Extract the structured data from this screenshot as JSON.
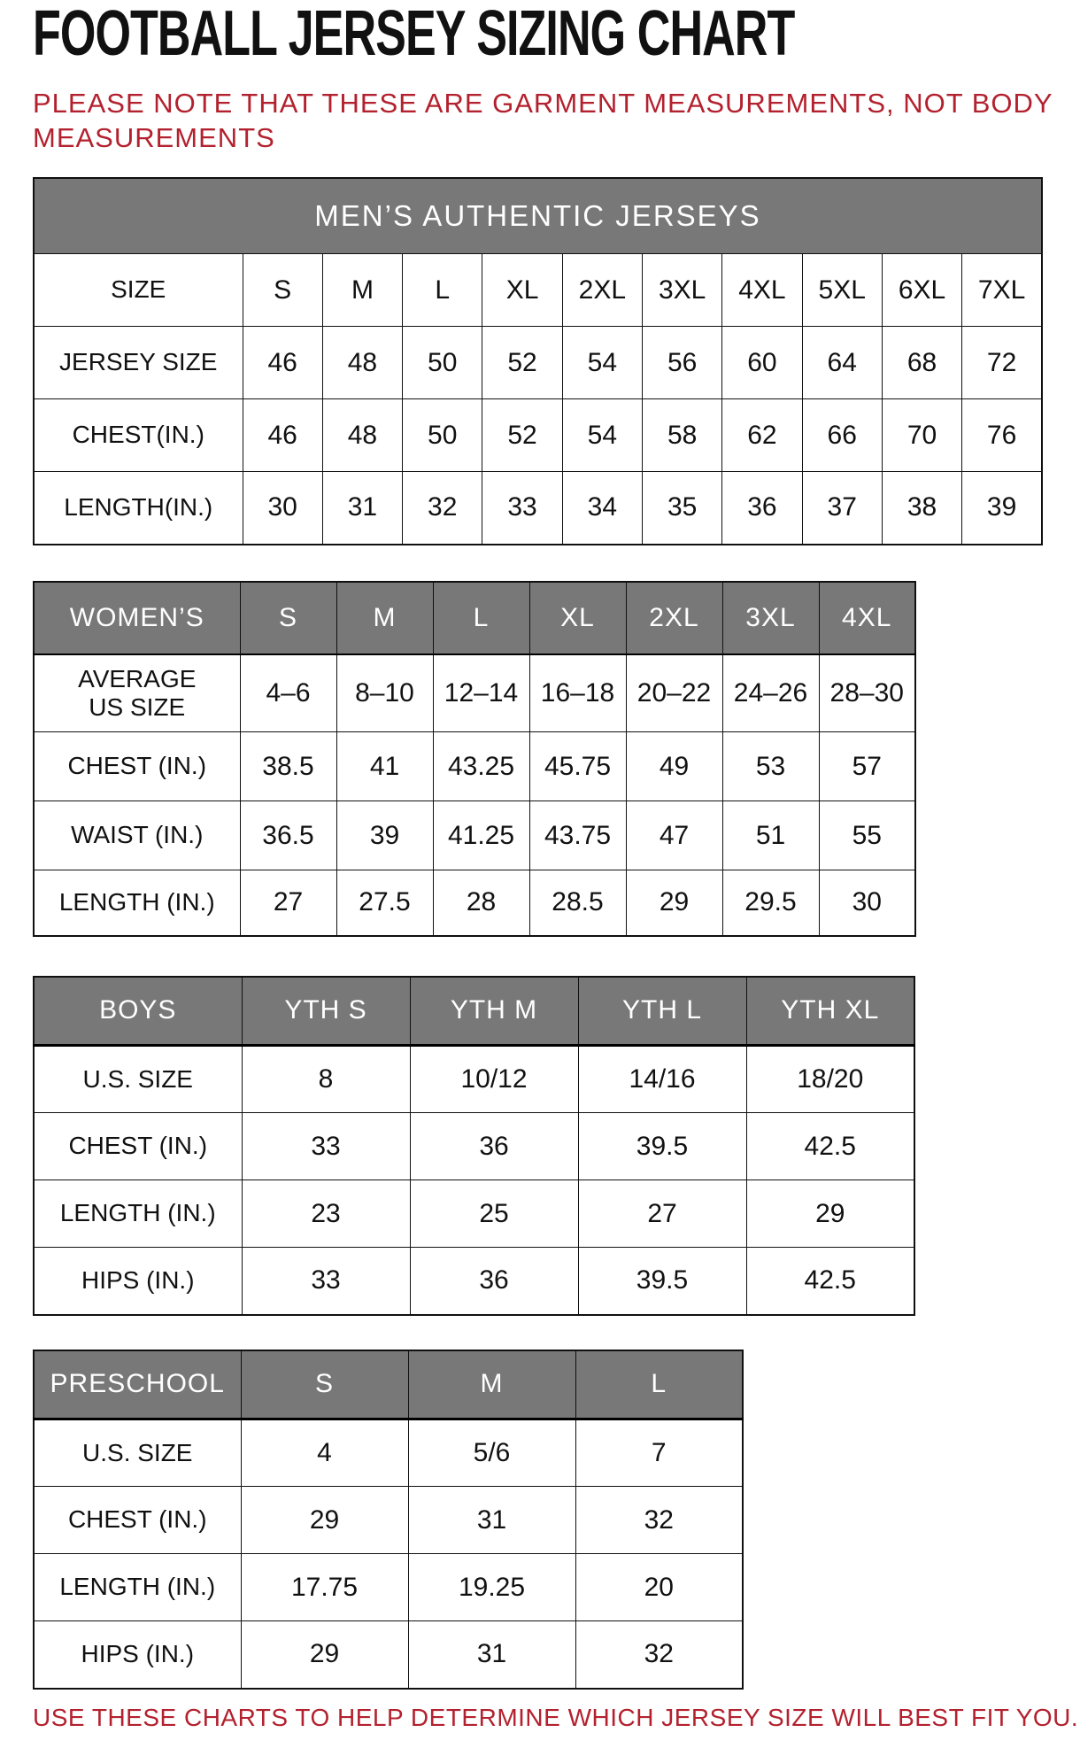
{
  "page": {
    "title": "FOOTBALL JERSEY SIZING CHART",
    "note_lines": [
      "PLEASE NOTE THAT THESE ARE GARMENT MEASUREMENTS, NOT BODY",
      "MEASUREMENTS"
    ],
    "footer": "USE THESE CHARTS TO HELP DETERMINE WHICH JERSEY SIZE WILL BEST FIT YOU.",
    "colors": {
      "accent_red": "#b3212e",
      "header_gray": "#787878",
      "text_black": "#111111"
    }
  },
  "tables": {
    "mens": {
      "title": "MEN’S AUTHENTIC JERSEYS",
      "rows": [
        [
          "SIZE",
          "S",
          "M",
          "L",
          "XL",
          "2XL",
          "3XL",
          "4XL",
          "5XL",
          "6XL",
          "7XL"
        ],
        [
          "JERSEY SIZE",
          "46",
          "48",
          "50",
          "52",
          "54",
          "56",
          "60",
          "64",
          "68",
          "72"
        ],
        [
          "CHEST(IN.)",
          "46",
          "48",
          "50",
          "52",
          "54",
          "58",
          "62",
          "66",
          "70",
          "76"
        ],
        [
          "LENGTH(IN.)",
          "30",
          "31",
          "32",
          "33",
          "34",
          "35",
          "36",
          "37",
          "38",
          "39"
        ]
      ]
    },
    "womens": {
      "header": [
        "WOMEN’S",
        "S",
        "M",
        "L",
        "XL",
        "2XL",
        "3XL",
        "4XL"
      ],
      "rows": [
        [
          "AVERAGE\nUS SIZE",
          "4–6",
          "8–10",
          "12–14",
          "16–18",
          "20–22",
          "24–26",
          "28–30"
        ],
        [
          "CHEST (IN.)",
          "38.5",
          "41",
          "43.25",
          "45.75",
          "49",
          "53",
          "57"
        ],
        [
          "WAIST (IN.)",
          "36.5",
          "39",
          "41.25",
          "43.75",
          "47",
          "51",
          "55"
        ],
        [
          "LENGTH (IN.)",
          "27",
          "27.5",
          "28",
          "28.5",
          "29",
          "29.5",
          "30"
        ]
      ]
    },
    "boys": {
      "header": [
        "BOYS",
        "YTH S",
        "YTH M",
        "YTH L",
        "YTH XL"
      ],
      "rows": [
        [
          "U.S. SIZE",
          "8",
          "10/12",
          "14/16",
          "18/20"
        ],
        [
          "CHEST (IN.)",
          "33",
          "36",
          "39.5",
          "42.5"
        ],
        [
          "LENGTH (IN.)",
          "23",
          "25",
          "27",
          "29"
        ],
        [
          "HIPS (IN.)",
          "33",
          "36",
          "39.5",
          "42.5"
        ]
      ]
    },
    "preschool": {
      "header": [
        "PRESCHOOL",
        "S",
        "M",
        "L"
      ],
      "rows": [
        [
          "U.S. SIZE",
          "4",
          "5/6",
          "7"
        ],
        [
          "CHEST (IN.)",
          "29",
          "31",
          "32"
        ],
        [
          "LENGTH (IN.)",
          "17.75",
          "19.25",
          "20"
        ],
        [
          "HIPS (IN.)",
          "29",
          "31",
          "32"
        ]
      ]
    }
  }
}
